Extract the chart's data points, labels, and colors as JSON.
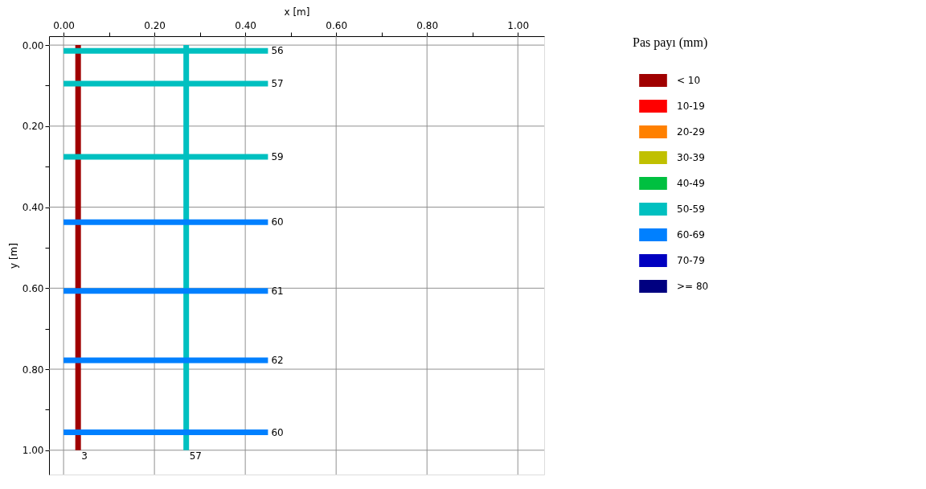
{
  "chart_data": {
    "type": "line",
    "xlabel": "x [m]",
    "ylabel": "y [m]",
    "legend_title": "Pas payı (mm)",
    "legend": "right",
    "grid": true,
    "xlim": [
      -0.032,
      1.058
    ],
    "ylim": [
      1.06,
      -0.022
    ],
    "xticks": [
      {
        "value": 0,
        "label": "0.00"
      },
      {
        "value": 0.1,
        "label": null
      },
      {
        "value": 0.2,
        "label": "0.20"
      },
      {
        "value": 0.3,
        "label": null
      },
      {
        "value": 0.4,
        "label": "0.40"
      },
      {
        "value": 0.5,
        "label": null
      },
      {
        "value": 0.6,
        "label": "0.60"
      },
      {
        "value": 0.7,
        "label": null
      },
      {
        "value": 0.8,
        "label": "0.80"
      },
      {
        "value": 0.9,
        "label": null
      },
      {
        "value": 1,
        "label": "1.00"
      }
    ],
    "yticks": [
      {
        "value": 0,
        "label": "0.00"
      },
      {
        "value": 0.1,
        "label": null
      },
      {
        "value": 0.2,
        "label": "0.20"
      },
      {
        "value": 0.3,
        "label": null
      },
      {
        "value": 0.4,
        "label": "0.40"
      },
      {
        "value": 0.5,
        "label": null
      },
      {
        "value": 0.6,
        "label": "0.60"
      },
      {
        "value": 0.7,
        "label": null
      },
      {
        "value": 0.8,
        "label": "0.80"
      },
      {
        "value": 0.9,
        "label": null
      },
      {
        "value": 1,
        "label": "1.00"
      }
    ],
    "series": [
      {
        "name": "< 10",
        "color": "#a00000",
        "x": [
          0.032,
          0.032
        ],
        "values": [
          0,
          1
        ]
      },
      {
        "name": "10-19",
        "color": "#ff0000"
      },
      {
        "name": "20-29",
        "color": "#ff8000"
      },
      {
        "name": "30-39",
        "color": "#c0c000"
      },
      {
        "name": "40-49",
        "color": "#00c040"
      },
      {
        "name": "50-59",
        "color": "#00c0c0",
        "x": [
          0,
          0.45
        ],
        "values": [
          0.014,
          0.014
        ]
      },
      {
        "color": "#00c0c0",
        "x": [
          0,
          0.45
        ],
        "values": [
          0.095,
          0.095
        ]
      },
      {
        "color": "#00c0c0",
        "x": [
          0,
          0.45
        ],
        "values": [
          0.276,
          0.276
        ]
      },
      {
        "color": "#00c0c0",
        "x": [
          0.27,
          0.27
        ],
        "values": [
          0,
          1
        ]
      },
      {
        "name": "60-69",
        "color": "#0080ff",
        "x": [
          0,
          0.45
        ],
        "values": [
          0.437,
          0.437
        ]
      },
      {
        "color": "#0080ff",
        "x": [
          0,
          0.45
        ],
        "values": [
          0.607,
          0.607
        ]
      },
      {
        "color": "#0080ff",
        "x": [
          0,
          0.45
        ],
        "values": [
          0.778,
          0.778
        ]
      },
      {
        "color": "#0080ff",
        "x": [
          0,
          0.45
        ],
        "values": [
          0.956,
          0.956
        ]
      },
      {
        "name": "70-79",
        "color": "#0000c0"
      },
      {
        "name": ">= 80",
        "color": "#000080"
      }
    ],
    "annotations": [
      {
        "text": "56",
        "x": 0.45,
        "y": 0.014
      },
      {
        "text": "57",
        "x": 0.45,
        "y": 0.095
      },
      {
        "text": "59",
        "x": 0.45,
        "y": 0.276
      },
      {
        "text": "60",
        "x": 0.45,
        "y": 0.437
      },
      {
        "text": "61",
        "x": 0.45,
        "y": 0.607
      },
      {
        "text": "62",
        "x": 0.45,
        "y": 0.778
      },
      {
        "text": "60",
        "x": 0.45,
        "y": 0.956
      },
      {
        "text": "3",
        "x": 0.032,
        "y": 1
      },
      {
        "text": "57",
        "x": 0.27,
        "y": 1
      }
    ]
  }
}
